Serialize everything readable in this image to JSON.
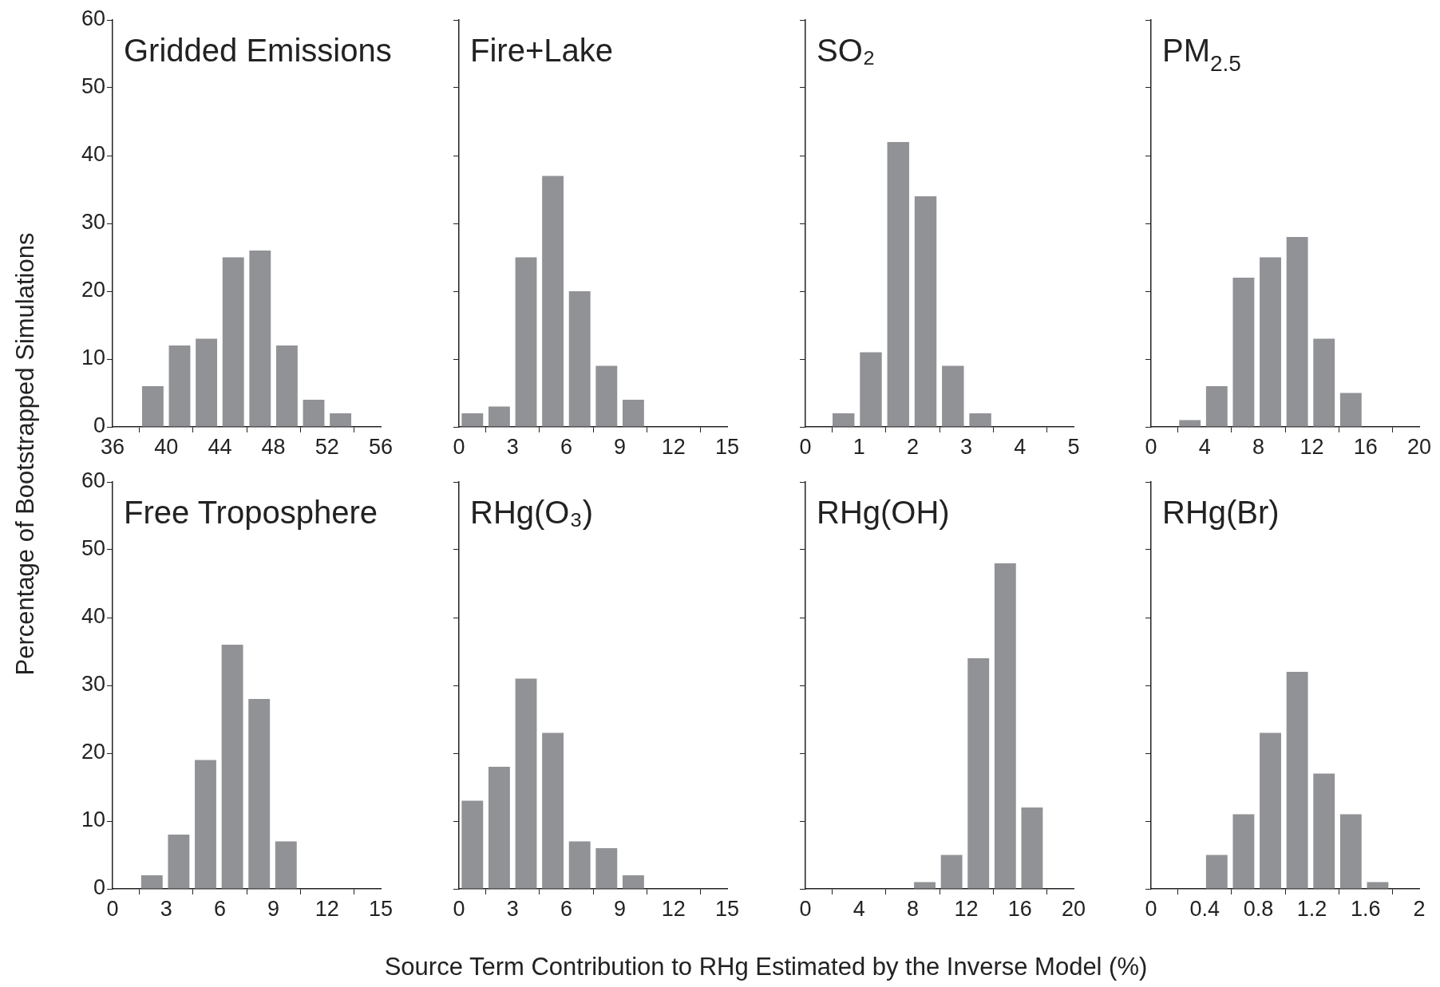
{
  "chart_data": [
    {
      "type": "bar",
      "title": "Gridded Emissions",
      "ylabel": "Percentage of Bootstrapped Simulations",
      "xlabel": "Source Term Contribution to RHg Estimated by the Inverse Model (%)",
      "x": [
        39,
        41,
        43,
        45,
        47,
        49,
        51,
        53
      ],
      "values": [
        6,
        12,
        13,
        25,
        26,
        12,
        4,
        2
      ],
      "color": "#919296",
      "xlim": [
        36,
        56
      ],
      "xticks": [
        36,
        40,
        44,
        48,
        52,
        56
      ],
      "ylim": [
        0,
        60
      ],
      "yticks": [
        0,
        10,
        20,
        30,
        40,
        50,
        60
      ]
    },
    {
      "type": "bar",
      "title": "Fire+Lake",
      "x": [
        0.75,
        2.25,
        3.75,
        5.25,
        6.75,
        8.25,
        9.75
      ],
      "values": [
        2,
        3,
        25,
        37,
        20,
        9,
        4
      ],
      "color": "#919296",
      "xlim": [
        0,
        15
      ],
      "xticks": [
        0,
        3,
        6,
        9,
        12,
        15
      ],
      "ylim": [
        0,
        60
      ],
      "yticks": [
        0,
        10,
        20,
        30,
        40,
        50,
        60
      ],
      "tick_labels": "x"
    },
    {
      "type": "bar",
      "title": "SO₂",
      "x": [
        0.71,
        1.22,
        1.73,
        2.24,
        2.75,
        3.26
      ],
      "values": [
        2,
        11,
        42,
        34,
        9,
        2
      ],
      "color": "#919296",
      "xlim": [
        0,
        5
      ],
      "xticks": [
        0,
        1,
        2,
        3,
        4,
        5
      ],
      "ylim": [
        0,
        60
      ],
      "yticks": [
        0,
        10,
        20,
        30,
        40,
        50,
        60
      ],
      "tick_labels": "x"
    },
    {
      "type": "bar",
      "title": "PM$_{2.5}$",
      "x": [
        2.9,
        4.9,
        6.9,
        8.9,
        10.9,
        12.9,
        14.9
      ],
      "values": [
        1,
        6,
        22,
        25,
        28,
        13,
        5
      ],
      "color": "#919296",
      "xlim": [
        0,
        20
      ],
      "xticks": [
        0,
        4,
        8,
        12,
        16,
        20
      ],
      "ylim": [
        0,
        60
      ],
      "yticks": [
        0,
        10,
        20,
        30,
        40,
        50,
        60
      ],
      "tick_labels": "x"
    },
    {
      "type": "bar",
      "title": "Free Troposphere",
      "x": [
        2.2,
        3.7,
        5.2,
        6.7,
        8.2,
        9.7
      ],
      "values": [
        2,
        8,
        19,
        36,
        28,
        7
      ],
      "color": "#919296",
      "xlim": [
        0,
        15
      ],
      "xticks": [
        0,
        3,
        6,
        9,
        12,
        15
      ],
      "ylim": [
        0,
        60
      ],
      "yticks": [
        0,
        10,
        20,
        30,
        40,
        50,
        60
      ]
    },
    {
      "type": "bar",
      "title": "RHg(O₃)",
      "x": [
        0.75,
        2.25,
        3.75,
        5.25,
        6.75,
        8.25,
        9.75
      ],
      "values": [
        13,
        18,
        31,
        23,
        7,
        6,
        2
      ],
      "color": "#919296",
      "xlim": [
        0,
        15
      ],
      "xticks": [
        0,
        3,
        6,
        9,
        12,
        15
      ],
      "ylim": [
        0,
        60
      ],
      "yticks": [
        0,
        10,
        20,
        30,
        40,
        50,
        60
      ],
      "tick_labels": "x"
    },
    {
      "type": "bar",
      "title": "RHg(OH)",
      "x": [
        8.9,
        10.9,
        12.9,
        14.9,
        16.9
      ],
      "values": [
        1,
        5,
        34,
        48,
        12
      ],
      "color": "#919296",
      "xlim": [
        0,
        20
      ],
      "xticks": [
        0,
        4,
        8,
        12,
        16,
        20
      ],
      "ylim": [
        0,
        60
      ],
      "yticks": [
        0,
        10,
        20,
        30,
        40,
        50,
        60
      ],
      "tick_labels": "x"
    },
    {
      "type": "bar",
      "title": "RHg(Br)",
      "x": [
        0.49,
        0.69,
        0.89,
        1.09,
        1.29,
        1.49,
        1.69
      ],
      "values": [
        5,
        11,
        23,
        32,
        17,
        11,
        1
      ],
      "color": "#919296",
      "xlim": [
        0,
        2
      ],
      "xticks": [
        0,
        0.4,
        0.8,
        1.2,
        1.6,
        2
      ],
      "ylim": [
        0,
        60
      ],
      "yticks": [
        0,
        10,
        20,
        30,
        40,
        50,
        60
      ],
      "tick_labels": "x"
    }
  ]
}
